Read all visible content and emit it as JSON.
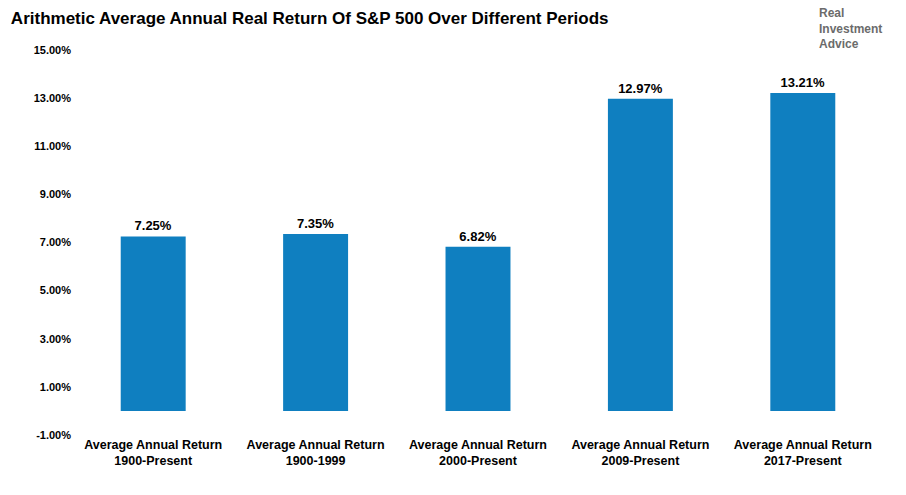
{
  "chart_data": {
    "type": "bar",
    "title": "Arithmetic Average Annual Real Return Of S&P 500 Over Different Periods",
    "annotations": [
      "Real Investment Advice"
    ],
    "categories": [
      "Average Annual Return\n1900-Present",
      "Average Annual Return\n1900-1999",
      "Average Annual Return\n2000-Present",
      "Average Annual Return\n2009-Present",
      "Average Annual Return\n2017-Present"
    ],
    "values": [
      7.25,
      7.35,
      6.82,
      12.97,
      13.21
    ],
    "value_labels": [
      "7.25%",
      "7.35%",
      "6.82%",
      "12.97%",
      "13.21%"
    ],
    "data_labels": true,
    "color": "#0f7fc0",
    "ylim": [
      -1,
      15
    ],
    "yticks": [
      {
        "value": -1,
        "label": "-1.00%"
      },
      {
        "value": 1,
        "label": "1.00%"
      },
      {
        "value": 3,
        "label": "3.00%"
      },
      {
        "value": 5,
        "label": "5.00%"
      },
      {
        "value": 7,
        "label": "7.00%"
      },
      {
        "value": 9,
        "label": "9.00%"
      },
      {
        "value": 11,
        "label": "11.00%"
      },
      {
        "value": 13,
        "label": "13.00%"
      },
      {
        "value": 15,
        "label": "15.00%"
      }
    ],
    "grid": false
  }
}
